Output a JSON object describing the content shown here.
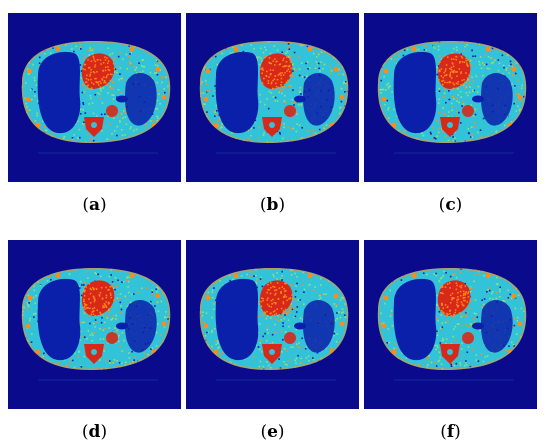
{
  "figure": {
    "panels": [
      {
        "id": "a",
        "label": "a"
      },
      {
        "id": "b",
        "label": "b"
      },
      {
        "id": "c",
        "label": "c"
      },
      {
        "id": "d",
        "label": "d"
      },
      {
        "id": "e",
        "label": "e"
      },
      {
        "id": "f",
        "label": "f"
      }
    ],
    "colors": {
      "background": "#0a0a8c",
      "cavity": "#0a1faa",
      "tissue": "#33c3d8",
      "tissue_speckle": "#8fe07a",
      "hot": "#d8281a",
      "hot_speckle": "#ff8a1a"
    }
  }
}
